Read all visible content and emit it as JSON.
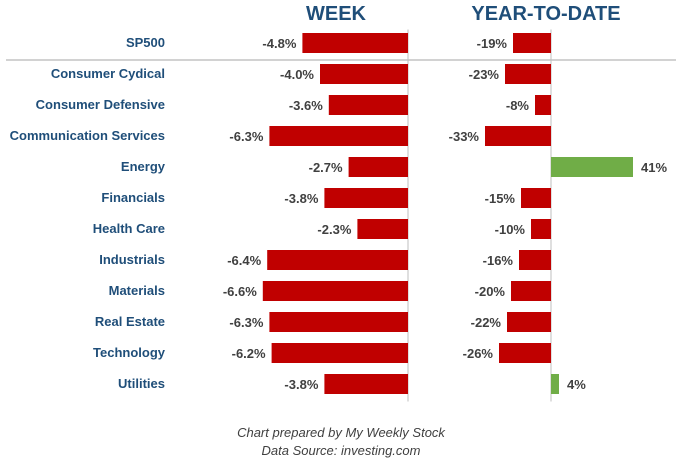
{
  "colors": {
    "negative": "#c00000",
    "positive": "#70ad47",
    "label": "#1f4e79",
    "value": "#404040",
    "axis": "#bfbfbf",
    "divider": "#a6a6a6"
  },
  "footer": {
    "line1": "Chart prepared by My Weekly Stock",
    "line2": "Data Source: investing.com"
  },
  "chart_data": {
    "type": "bar",
    "orientation": "horizontal",
    "categories": [
      "SP500",
      "Consumer Cydical",
      "Consumer Defensive",
      "Communication Services",
      "Energy",
      "Financials",
      "Health Care",
      "Industrials",
      "Materials",
      "Real Estate",
      "Technology",
      "Utilities"
    ],
    "panels": [
      {
        "title": "WEEK",
        "values": [
          -4.8,
          -4.0,
          -3.6,
          -6.3,
          -2.7,
          -3.8,
          -2.3,
          -6.4,
          -6.6,
          -6.3,
          -6.2,
          -3.8
        ],
        "labels": [
          "-4.8%",
          "-4.0%",
          "-3.6%",
          "-6.3%",
          "-2.7%",
          "-3.8%",
          "-2.3%",
          "-6.4%",
          "-6.6%",
          "-6.3%",
          "-6.2%",
          "-3.8%"
        ]
      },
      {
        "title": "YEAR-TO-DATE",
        "values": [
          -19,
          -23,
          -8,
          -33,
          41,
          -15,
          -10,
          -16,
          -20,
          -22,
          -26,
          4
        ],
        "labels": [
          "-19%",
          "-23%",
          "-8%",
          "-33%",
          "41%",
          "-15%",
          "-10%",
          "-16%",
          "-20%",
          "-22%",
          "-26%",
          "4%"
        ]
      }
    ],
    "grid": false,
    "legend": "none"
  }
}
